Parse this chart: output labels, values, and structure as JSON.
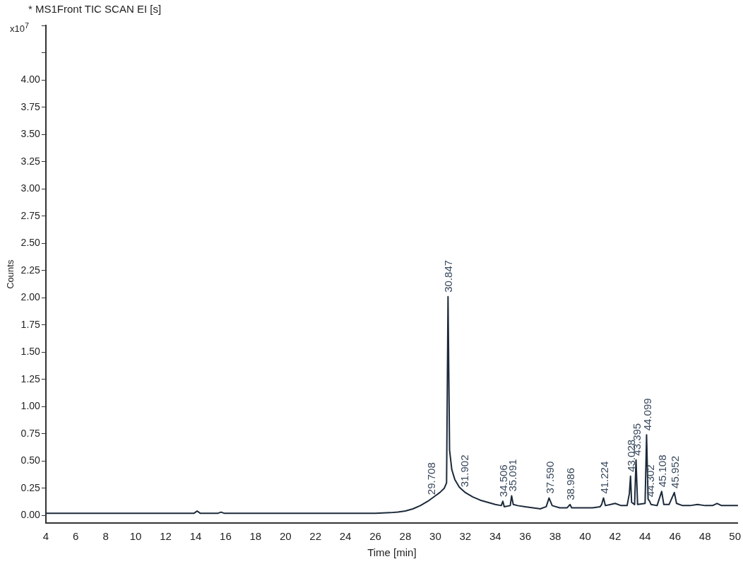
{
  "chart_data": {
    "type": "line",
    "title": "* MS1Front TIC SCAN EI [s]",
    "xlabel": "Time [min]",
    "ylabel": "Counts",
    "color": "#1c2a3a",
    "marker": "none",
    "grid": false,
    "legend": false,
    "x": [
      4,
      6,
      8,
      10,
      12,
      13.9,
      14.1,
      14.3,
      15.5,
      15.7,
      15.9,
      18,
      20,
      22,
      24,
      26,
      27,
      27.5,
      28,
      28.5,
      29,
      29.5,
      30,
      30.3,
      30.6,
      30.75,
      30.847,
      30.95,
      31.1,
      31.3,
      31.6,
      32,
      32.5,
      33,
      33.5,
      34,
      34.4,
      34.506,
      34.6,
      35,
      35.091,
      35.2,
      35.5,
      36,
      36.5,
      37,
      37.4,
      37.59,
      37.8,
      38.3,
      38.8,
      38.986,
      39.1,
      39.5,
      40,
      40.5,
      41,
      41.1,
      41.224,
      41.35,
      41.7,
      42,
      42.4,
      42.8,
      42.95,
      43.028,
      43.1,
      43.3,
      43.395,
      43.5,
      44,
      44.099,
      44.2,
      44.302,
      44.4,
      44.8,
      45.108,
      45.25,
      45.6,
      45.952,
      46.1,
      46.5,
      47,
      47.5,
      48,
      48.5,
      48.8,
      49.1,
      49.6,
      50.2
    ],
    "values": [
      0.02,
      0.02,
      0.02,
      0.02,
      0.02,
      0.02,
      0.04,
      0.02,
      0.02,
      0.03,
      0.02,
      0.02,
      0.02,
      0.02,
      0.02,
      0.02,
      0.025,
      0.03,
      0.04,
      0.06,
      0.09,
      0.13,
      0.18,
      0.21,
      0.25,
      0.3,
      2.01,
      0.6,
      0.42,
      0.33,
      0.26,
      0.21,
      0.17,
      0.14,
      0.12,
      0.1,
      0.09,
      0.13,
      0.08,
      0.09,
      0.18,
      0.1,
      0.09,
      0.08,
      0.07,
      0.06,
      0.08,
      0.16,
      0.09,
      0.07,
      0.07,
      0.1,
      0.07,
      0.07,
      0.07,
      0.07,
      0.08,
      0.1,
      0.16,
      0.09,
      0.1,
      0.11,
      0.09,
      0.09,
      0.2,
      0.36,
      0.12,
      0.1,
      0.51,
      0.1,
      0.11,
      0.74,
      0.15,
      0.13,
      0.1,
      0.09,
      0.22,
      0.1,
      0.1,
      0.21,
      0.11,
      0.09,
      0.09,
      0.1,
      0.09,
      0.09,
      0.11,
      0.09,
      0.09,
      0.09
    ],
    "xlim": [
      4,
      50.2
    ],
    "xticks": [
      4,
      6,
      8,
      10,
      12,
      14,
      16,
      18,
      20,
      22,
      24,
      26,
      28,
      30,
      32,
      34,
      36,
      38,
      40,
      42,
      44,
      46,
      48,
      50
    ],
    "ylim": [
      -0.07,
      4.5
    ],
    "yticks": [
      {
        "value": 0,
        "label": "0.00"
      },
      {
        "value": 0.25,
        "label": "0.25"
      },
      {
        "value": 0.5,
        "label": "0.50"
      },
      {
        "value": 0.75,
        "label": "0.75"
      },
      {
        "value": 1,
        "label": "1.00"
      },
      {
        "value": 1.25,
        "label": "1.25"
      },
      {
        "value": 1.5,
        "label": "1.50"
      },
      {
        "value": 1.75,
        "label": "1.75"
      },
      {
        "value": 2,
        "label": "2.00"
      },
      {
        "value": 2.25,
        "label": "2.25"
      },
      {
        "value": 2.5,
        "label": "2.50"
      },
      {
        "value": 2.75,
        "label": "2.75"
      },
      {
        "value": 3,
        "label": "3.00"
      },
      {
        "value": 3.25,
        "label": "3.25"
      },
      {
        "value": 3.5,
        "label": "3.50"
      },
      {
        "value": 3.75,
        "label": "3.75"
      },
      {
        "value": 4,
        "label": "4.00"
      },
      {
        "value": 4.25,
        "label": null
      },
      {
        "value": 4.5,
        "label": null
      }
    ],
    "annotations": [
      "x10$^{7}$",
      {
        "text": "29.708",
        "x": 29.708,
        "y": 0.15
      },
      {
        "text": "30.847",
        "x": 30.847,
        "y": 2.01
      },
      {
        "text": "31.902",
        "x": 31.902,
        "y": 0.22
      },
      {
        "text": "34.506",
        "x": 34.506,
        "y": 0.13
      },
      {
        "text": "35.091",
        "x": 35.091,
        "y": 0.18
      },
      {
        "text": "37.590",
        "x": 37.59,
        "y": 0.16
      },
      {
        "text": "38.986",
        "x": 38.986,
        "y": 0.1
      },
      {
        "text": "41.224",
        "x": 41.224,
        "y": 0.16
      },
      {
        "text": "43.028",
        "x": 43.028,
        "y": 0.36
      },
      {
        "text": "43.395",
        "x": 43.395,
        "y": 0.51
      },
      {
        "text": "44.099",
        "x": 44.099,
        "y": 0.74
      },
      {
        "text": "44.302",
        "x": 44.302,
        "y": 0.13
      },
      {
        "text": "45.108",
        "x": 45.108,
        "y": 0.22
      },
      {
        "text": "45.952",
        "x": 45.952,
        "y": 0.21
      }
    ]
  }
}
